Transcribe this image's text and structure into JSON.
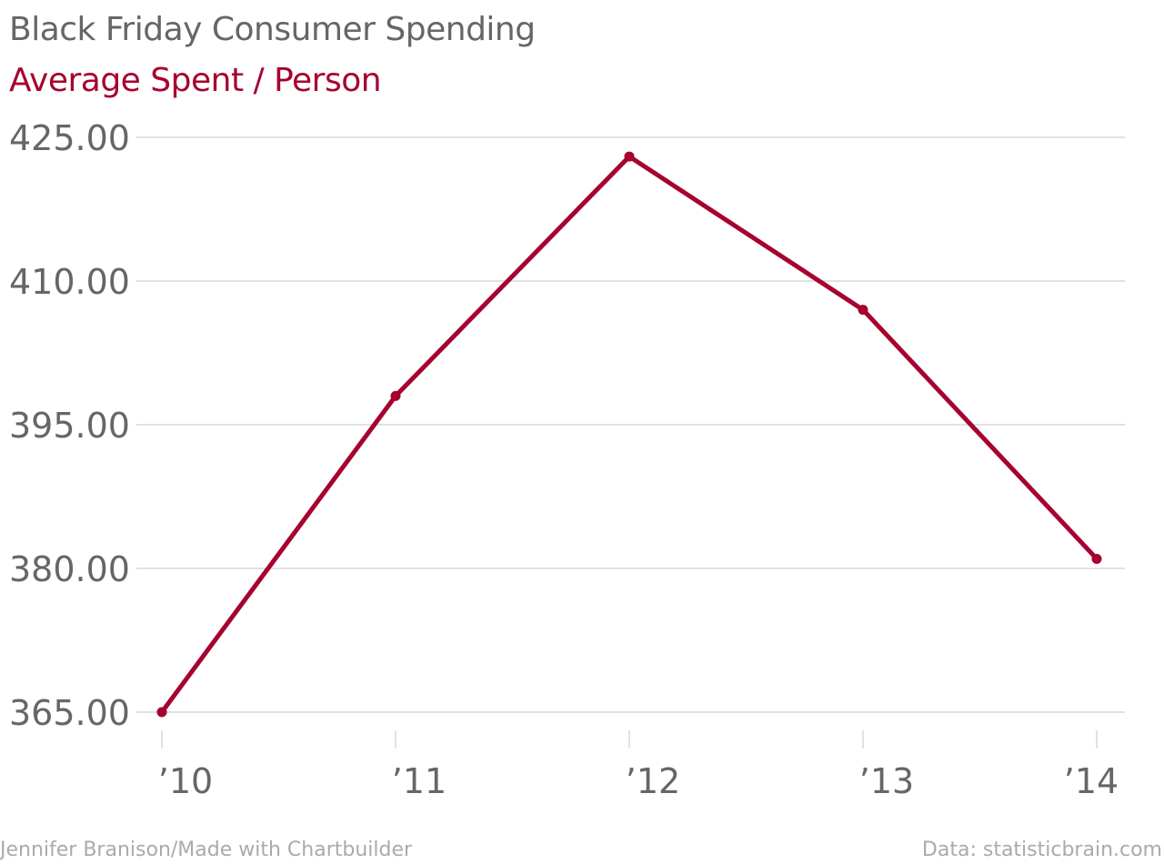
{
  "title": "Black Friday Consumer Spending",
  "subtitle": "Average Spent / Person",
  "footer": {
    "credit": "Jennifer Branison/Made with Chartbuilder",
    "source": "Data: statisticbrain.com"
  },
  "colors": {
    "series": "#a6032f",
    "title": "#666666",
    "gridline": "#d9d9d9",
    "tick_label": "#666666",
    "footer": "#aaaaaa"
  },
  "chart_data": {
    "type": "line",
    "title": "Black Friday Consumer Spending",
    "subtitle": "Average Spent / Person",
    "categories": [
      "’10",
      "’11",
      "’12",
      "’13",
      "’14"
    ],
    "series": [
      {
        "values": [
          365.0,
          398.0,
          423.0,
          407.0,
          381.0
        ]
      }
    ],
    "ylim": [
      365,
      425
    ],
    "yticks": [
      "425.00",
      "410.00",
      "395.00",
      "380.00",
      "365.00"
    ],
    "ytick_values": [
      425,
      410,
      395,
      380,
      365
    ],
    "grid": true,
    "legend": "none",
    "markers": true
  }
}
